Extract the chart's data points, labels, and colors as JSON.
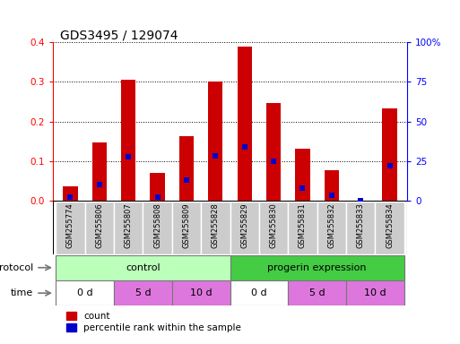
{
  "title": "GDS3495 / 129074",
  "samples": [
    "GSM255774",
    "GSM255806",
    "GSM255807",
    "GSM255808",
    "GSM255809",
    "GSM255828",
    "GSM255829",
    "GSM255830",
    "GSM255831",
    "GSM255832",
    "GSM255833",
    "GSM255834"
  ],
  "count_values": [
    0.035,
    0.148,
    0.305,
    0.07,
    0.162,
    0.3,
    0.39,
    0.247,
    0.13,
    0.077,
    0.0,
    0.232
  ],
  "percentile_values": [
    2.0,
    10.0,
    27.5,
    2.0,
    13.0,
    28.0,
    34.0,
    25.0,
    8.0,
    3.5,
    0.0,
    22.0
  ],
  "left_ylim": [
    0,
    0.4
  ],
  "right_ylim": [
    0,
    100
  ],
  "left_yticks": [
    0.0,
    0.1,
    0.2,
    0.3,
    0.4
  ],
  "right_yticks": [
    0,
    25,
    50,
    75,
    100
  ],
  "right_yticklabels": [
    "0",
    "25",
    "50",
    "75",
    "100%"
  ],
  "bar_color": "#cc0000",
  "marker_color": "#0000cc",
  "bar_width": 0.5,
  "protocol_control_color": "#bbffbb",
  "protocol_progerin_color": "#44cc44",
  "time_color_0d": "#ffffff",
  "time_color_5d": "#dd77dd",
  "time_color_10d": "#dd77dd",
  "sample_bg_color": "#cccccc",
  "title_fontsize": 10,
  "tick_fontsize": 7.5,
  "sample_fontsize": 6,
  "row_fontsize": 8
}
